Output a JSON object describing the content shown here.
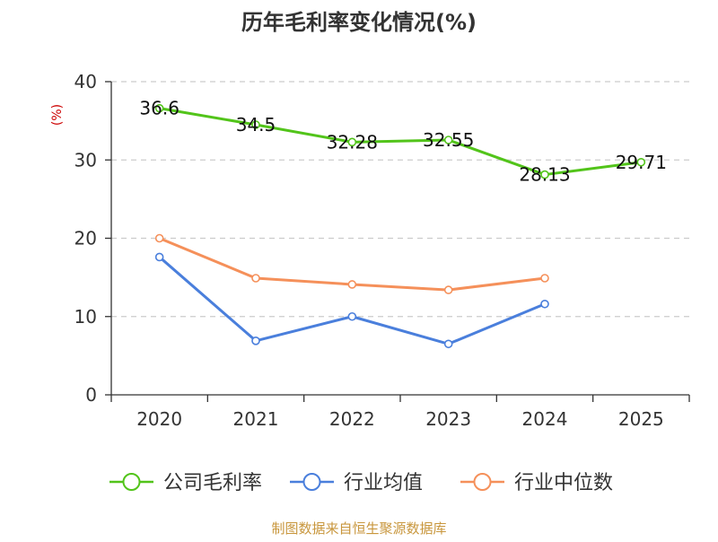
{
  "chart_data": {
    "type": "line",
    "title": "历年毛利率变化情况(%)",
    "ylabel": "(%)",
    "xlabel": "",
    "categories": [
      "2020",
      "2021",
      "2022",
      "2023",
      "2024",
      "2025"
    ],
    "ylim": [
      0,
      40
    ],
    "yticks": [
      0,
      10,
      20,
      30,
      40
    ],
    "grid": true,
    "legend_position": "bottom",
    "series": [
      {
        "name": "公司毛利率",
        "color": "#52c41a",
        "values": [
          36.6,
          34.5,
          32.28,
          32.55,
          28.13,
          29.71
        ],
        "labels": [
          "36.6",
          "34.5",
          "32.28",
          "32.55",
          "28.13",
          "29.71"
        ],
        "show_labels": true
      },
      {
        "name": "行业均值",
        "color": "#4a7fdc",
        "values": [
          17.6,
          6.9,
          10.0,
          6.5,
          11.6,
          null
        ],
        "show_labels": false
      },
      {
        "name": "行业中位数",
        "color": "#f5905a",
        "values": [
          20.0,
          14.9,
          14.1,
          13.4,
          14.9,
          null
        ],
        "show_labels": false
      }
    ],
    "source": "制图数据来自恒生聚源数据库",
    "colors": {
      "title": "#333333",
      "ylabel": "#cc0000",
      "source": "#c8963c",
      "axis": "#333333",
      "grid": "#cccccc"
    }
  }
}
